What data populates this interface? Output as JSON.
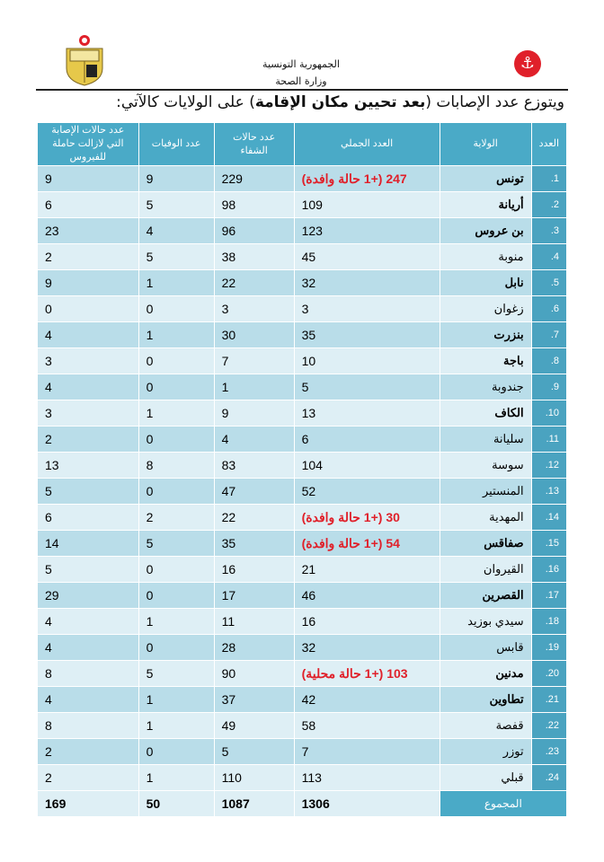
{
  "header": {
    "country": "الجمهورية التونسية",
    "ministry": "وزارة الصحة"
  },
  "title": {
    "prefix": "ويتوزع عدد الإصابات (",
    "bold": "بعد تحيين مكان الإقامة",
    "suffix": ") على الولايات كالآتي:"
  },
  "table": {
    "columns": [
      "العدد",
      "الولاية",
      "العدد الجملي",
      "عدد حالات الشفاء",
      "عدد الوفيات",
      "عدد حالات الإصابة التي لازالت حاملة للفيروس"
    ],
    "rows": [
      {
        "n": "1.",
        "state": "تونس",
        "bold": true,
        "total": "247 (+1 حالة وافدة)",
        "red": true,
        "recovered": "229",
        "deaths": "9",
        "active": "9"
      },
      {
        "n": "2.",
        "state": "أريانة",
        "bold": true,
        "total": "109",
        "recovered": "98",
        "deaths": "5",
        "active": "6"
      },
      {
        "n": "3.",
        "state": "بن عروس",
        "bold": true,
        "total": "123",
        "recovered": "96",
        "deaths": "4",
        "active": "23"
      },
      {
        "n": "4.",
        "state": "منوبة",
        "total": "45",
        "recovered": "38",
        "deaths": "5",
        "active": "2"
      },
      {
        "n": "5.",
        "state": "نابل",
        "bold": true,
        "total": "32",
        "recovered": "22",
        "deaths": "1",
        "active": "9"
      },
      {
        "n": "6.",
        "state": "زغوان",
        "total": "3",
        "recovered": "3",
        "deaths": "0",
        "active": "0"
      },
      {
        "n": "7.",
        "state": "بنزرت",
        "bold": true,
        "total": "35",
        "recovered": "30",
        "deaths": "1",
        "active": "4"
      },
      {
        "n": "8.",
        "state": "باجة",
        "bold": true,
        "total": "10",
        "recovered": "7",
        "deaths": "0",
        "active": "3"
      },
      {
        "n": "9.",
        "state": "جندوبة",
        "total": "5",
        "recovered": "1",
        "deaths": "0",
        "active": "4"
      },
      {
        "n": "10.",
        "state": "الكاف",
        "bold": true,
        "total": "13",
        "recovered": "9",
        "deaths": "1",
        "active": "3"
      },
      {
        "n": "11.",
        "state": "سليانة",
        "total": "6",
        "recovered": "4",
        "deaths": "0",
        "active": "2"
      },
      {
        "n": "12.",
        "state": "سوسة",
        "total": "104",
        "recovered": "83",
        "deaths": "8",
        "active": "13"
      },
      {
        "n": "13.",
        "state": "المنستير",
        "total": "52",
        "recovered": "47",
        "deaths": "0",
        "active": "5"
      },
      {
        "n": "14.",
        "state": "المهدية",
        "total": "30 (+1 حالة وافدة)",
        "red": true,
        "recovered": "22",
        "deaths": "2",
        "active": "6"
      },
      {
        "n": "15.",
        "state": "صفاقس",
        "bold": true,
        "total": "54 (+1 حالة وافدة)",
        "red": true,
        "recovered": "35",
        "deaths": "5",
        "active": "14"
      },
      {
        "n": "16.",
        "state": "القيروان",
        "total": "21",
        "recovered": "16",
        "deaths": "0",
        "active": "5"
      },
      {
        "n": "17.",
        "state": "القصرين",
        "bold": true,
        "total": "46",
        "recovered": "17",
        "deaths": "0",
        "active": "29"
      },
      {
        "n": "18.",
        "state": "سيدي بوزيد",
        "total": "16",
        "recovered": "11",
        "deaths": "1",
        "active": "4"
      },
      {
        "n": "19.",
        "state": "قابس",
        "total": "32",
        "recovered": "28",
        "deaths": "0",
        "active": "4"
      },
      {
        "n": "20.",
        "state": "مدنين",
        "bold": true,
        "total": "103 (+1 حالة محلية)",
        "red": true,
        "recovered": "90",
        "deaths": "5",
        "active": "8"
      },
      {
        "n": "21.",
        "state": "تطاوين",
        "bold": true,
        "total": "42",
        "recovered": "37",
        "deaths": "1",
        "active": "4"
      },
      {
        "n": "22.",
        "state": "قفصة",
        "total": "58",
        "recovered": "49",
        "deaths": "1",
        "active": "8"
      },
      {
        "n": "23.",
        "state": "توزر",
        "total": "7",
        "recovered": "5",
        "deaths": "0",
        "active": "2"
      },
      {
        "n": "24.",
        "state": "قبلي",
        "total": "113",
        "recovered": "110",
        "deaths": "1",
        "active": "2"
      }
    ],
    "totals": {
      "label": "المجموع",
      "total": "1306",
      "recovered": "1087",
      "deaths": "50",
      "active": "169"
    }
  },
  "colors": {
    "header": "#4aaac7",
    "row_dark": "#b9dde9",
    "row_light": "#deeff5",
    "highlight": "#e0202a"
  }
}
